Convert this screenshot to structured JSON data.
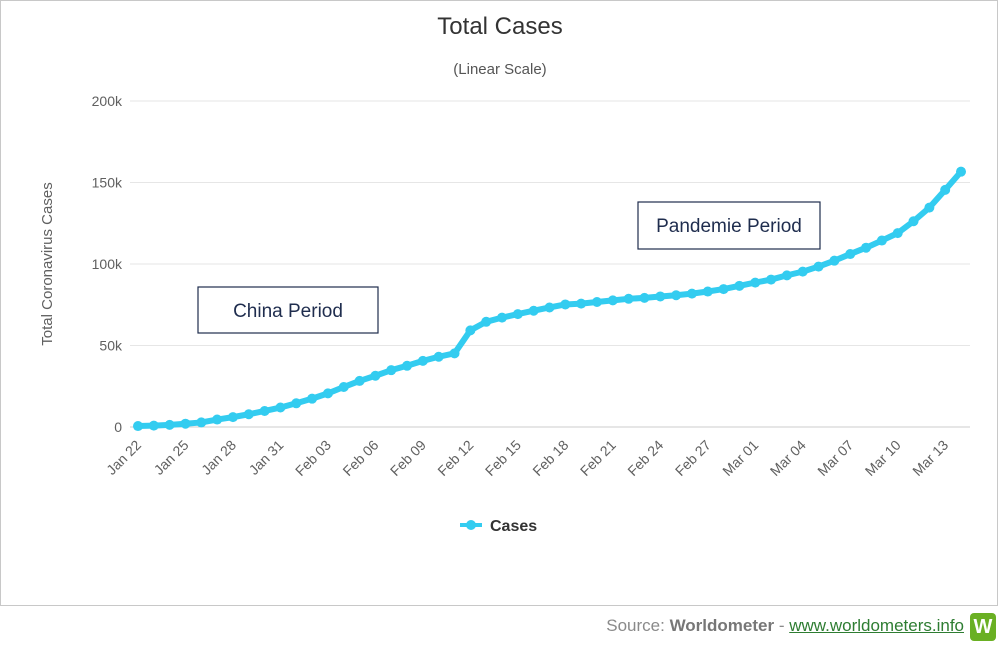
{
  "chart_data": {
    "type": "line",
    "title": "Total Cases",
    "subtitle": "(Linear Scale)",
    "ylabel": "Total Coronavirus Cases",
    "xlabel": "",
    "ylim": [
      0,
      200000
    ],
    "y_ticks": [
      {
        "value": 0,
        "label": "0"
      },
      {
        "value": 50000,
        "label": "50k"
      },
      {
        "value": 100000,
        "label": "100k"
      },
      {
        "value": 150000,
        "label": "150k"
      },
      {
        "value": 200000,
        "label": "200k"
      }
    ],
    "grid": true,
    "legend_position": "bottom",
    "series_color": "#33ccf0",
    "x": [
      "Jan 22",
      "Jan 23",
      "Jan 24",
      "Jan 25",
      "Jan 26",
      "Jan 27",
      "Jan 28",
      "Jan 29",
      "Jan 30",
      "Jan 31",
      "Feb 01",
      "Feb 02",
      "Feb 03",
      "Feb 04",
      "Feb 05",
      "Feb 06",
      "Feb 07",
      "Feb 08",
      "Feb 09",
      "Feb 10",
      "Feb 11",
      "Feb 12",
      "Feb 13",
      "Feb 14",
      "Feb 15",
      "Feb 16",
      "Feb 17",
      "Feb 18",
      "Feb 19",
      "Feb 20",
      "Feb 21",
      "Feb 22",
      "Feb 23",
      "Feb 24",
      "Feb 25",
      "Feb 26",
      "Feb 27",
      "Feb 28",
      "Feb 29",
      "Mar 01",
      "Mar 02",
      "Mar 03",
      "Mar 04",
      "Mar 05",
      "Mar 06",
      "Mar 07",
      "Mar 08",
      "Mar 09",
      "Mar 10",
      "Mar 11",
      "Mar 12",
      "Mar 13",
      "Mar 14"
    ],
    "x_tick_labels": [
      "Jan 22",
      "Jan 25",
      "Jan 28",
      "Jan 31",
      "Feb 03",
      "Feb 06",
      "Feb 09",
      "Feb 12",
      "Feb 15",
      "Feb 18",
      "Feb 21",
      "Feb 24",
      "Feb 27",
      "Mar 01",
      "Mar 04",
      "Mar 07",
      "Mar 10",
      "Mar 13"
    ],
    "series": [
      {
        "name": "Cases",
        "values": [
          580,
          845,
          1317,
          2015,
          2800,
          4581,
          6058,
          7813,
          9823,
          11950,
          14553,
          17391,
          20630,
          24545,
          28266,
          31439,
          34876,
          37552,
          40553,
          43099,
          45170,
          59283,
          64543,
          67103,
          69265,
          71332,
          73327,
          75184,
          75700,
          76677,
          77673,
          78651,
          79205,
          80087,
          80828,
          81820,
          83112,
          84615,
          86604,
          88585,
          90443,
          93016,
          95314,
          98425,
          102050,
          106099,
          109991,
          114381,
          118948,
          126214,
          134576,
          145483,
          156653
        ]
      }
    ],
    "annotations": [
      {
        "text": "China Period"
      },
      {
        "text": "Pandemie Period"
      }
    ]
  },
  "source": {
    "prefix": "Source: ",
    "brand": "Worldometer",
    "separator": " - ",
    "link": "www.worldometers.info",
    "logo_letter": "W",
    "logo_color": "#6ab023"
  }
}
